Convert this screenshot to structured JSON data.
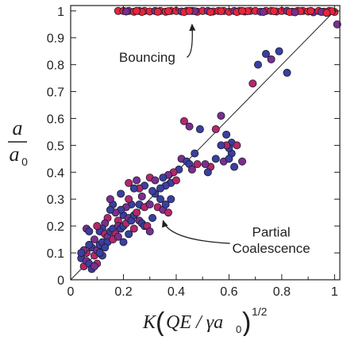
{
  "colors": {
    "axis": "#231f20",
    "point_stroke": "#1a1a2e",
    "bouncing_red": "#e8253a",
    "coalescence_blue": "#3b3f9e",
    "coalescence_purple": "#7a2f8c",
    "coalescence_magenta": "#b5276a"
  },
  "chart_data": {
    "type": "scatter",
    "title": "",
    "xlabel": "K(QE/γa0)^1/2",
    "ylabel": "a / a0",
    "xlim": [
      0,
      1.02
    ],
    "ylim": [
      0,
      1.02
    ],
    "grid": false,
    "legend": "none",
    "x_ticks": [
      "0",
      "0.2",
      "0.4",
      "0.6",
      "0.8",
      "1"
    ],
    "y_ticks": [
      "0",
      "0.1",
      "0.2",
      "0.3",
      "0.4",
      "0.5",
      "0.6",
      "0.7",
      "0.8",
      "0.9",
      "1"
    ],
    "reference_line": {
      "label": "",
      "x": [
        0,
        1
      ],
      "y": [
        0,
        1
      ]
    },
    "annotations": [
      {
        "text": "Bouncing",
        "x": 0.29,
        "y": 0.81,
        "arrow_to": [
          0.46,
          0.95
        ]
      },
      {
        "text": "Partial",
        "x": 0.76,
        "y": 0.16
      },
      {
        "text": "Coalescence",
        "x": 0.76,
        "y": 0.1,
        "arrow_to": [
          0.35,
          0.22
        ]
      }
    ],
    "series": [
      {
        "group": "bouncing",
        "points": [
          [
            0.18,
            1.0
          ],
          [
            0.2,
            1.0
          ],
          [
            0.22,
            1.0
          ],
          [
            0.24,
            0.997
          ],
          [
            0.26,
            1.0
          ],
          [
            0.28,
            1.0
          ],
          [
            0.3,
            0.998
          ],
          [
            0.32,
            1.0
          ],
          [
            0.34,
            1.0
          ],
          [
            0.36,
            0.997
          ],
          [
            0.38,
            1.0
          ],
          [
            0.4,
            1.0
          ],
          [
            0.42,
            0.998
          ],
          [
            0.44,
            1.0
          ],
          [
            0.46,
            1.0
          ],
          [
            0.48,
            0.997
          ],
          [
            0.5,
            1.0
          ],
          [
            0.52,
            1.0
          ],
          [
            0.54,
            0.998
          ],
          [
            0.56,
            1.0
          ],
          [
            0.58,
            1.0
          ],
          [
            0.6,
            0.997
          ],
          [
            0.62,
            1.0
          ],
          [
            0.64,
            1.0
          ],
          [
            0.66,
            0.998
          ],
          [
            0.68,
            1.0
          ],
          [
            0.7,
            1.0
          ],
          [
            0.72,
            0.997
          ],
          [
            0.74,
            1.0
          ],
          [
            0.76,
            1.0
          ],
          [
            0.78,
            0.998
          ],
          [
            0.8,
            1.0
          ],
          [
            0.82,
            1.0
          ],
          [
            0.84,
            0.997
          ],
          [
            0.86,
            1.0
          ],
          [
            0.88,
            1.0
          ],
          [
            0.9,
            0.998
          ],
          [
            0.92,
            0.995
          ],
          [
            0.94,
            1.0
          ],
          [
            0.96,
            0.997
          ],
          [
            0.98,
            1.0
          ],
          [
            1.0,
            0.996
          ],
          [
            0.21,
            0.998
          ],
          [
            0.27,
            0.996
          ],
          [
            0.33,
            0.997
          ],
          [
            0.37,
            0.999
          ],
          [
            0.43,
            0.996
          ],
          [
            0.47,
            0.999
          ],
          [
            0.53,
            0.996
          ],
          [
            0.57,
            0.999
          ],
          [
            0.63,
            0.996
          ],
          [
            0.67,
            0.999
          ],
          [
            0.73,
            0.996
          ],
          [
            0.77,
            0.999
          ],
          [
            0.83,
            0.996
          ],
          [
            0.87,
            0.999
          ],
          [
            0.91,
            1.0
          ],
          [
            0.95,
            0.996
          ],
          [
            0.99,
            0.999
          ],
          [
            0.25,
            1.0
          ],
          [
            0.45,
            1.0
          ],
          [
            0.65,
            1.0
          ],
          [
            0.85,
            0.995
          ],
          [
            0.97,
            0.993
          ]
        ]
      },
      {
        "group": "partial coalescence",
        "points": [
          [
            1.01,
            0.95
          ],
          [
            0.74,
            0.84
          ],
          [
            0.71,
            0.8
          ],
          [
            0.69,
            0.73
          ],
          [
            0.76,
            0.82
          ],
          [
            0.79,
            0.85
          ],
          [
            0.82,
            0.77
          ],
          [
            0.43,
            0.59
          ],
          [
            0.45,
            0.57
          ],
          [
            0.47,
            0.47
          ],
          [
            0.49,
            0.56
          ],
          [
            0.55,
            0.56
          ],
          [
            0.57,
            0.61
          ],
          [
            0.59,
            0.54
          ],
          [
            0.61,
            0.51
          ],
          [
            0.63,
            0.5
          ],
          [
            0.65,
            0.44
          ],
          [
            0.61,
            0.47
          ],
          [
            0.6,
            0.49
          ],
          [
            0.59,
            0.5
          ],
          [
            0.58,
            0.44
          ],
          [
            0.62,
            0.42
          ],
          [
            0.55,
            0.45
          ],
          [
            0.53,
            0.42
          ],
          [
            0.51,
            0.43
          ],
          [
            0.52,
            0.4
          ],
          [
            0.41,
            0.41
          ],
          [
            0.39,
            0.4
          ],
          [
            0.37,
            0.39
          ],
          [
            0.38,
            0.36
          ],
          [
            0.36,
            0.35
          ],
          [
            0.4,
            0.37
          ],
          [
            0.42,
            0.45
          ],
          [
            0.44,
            0.44
          ],
          [
            0.45,
            0.43
          ],
          [
            0.3,
            0.38
          ],
          [
            0.32,
            0.37
          ],
          [
            0.34,
            0.3
          ],
          [
            0.28,
            0.35
          ],
          [
            0.26,
            0.34
          ],
          [
            0.25,
            0.37
          ],
          [
            0.24,
            0.34
          ],
          [
            0.23,
            0.28
          ],
          [
            0.22,
            0.3
          ],
          [
            0.21,
            0.27
          ],
          [
            0.2,
            0.24
          ],
          [
            0.19,
            0.26
          ],
          [
            0.18,
            0.22
          ],
          [
            0.17,
            0.25
          ],
          [
            0.16,
            0.28
          ],
          [
            0.15,
            0.26
          ],
          [
            0.14,
            0.23
          ],
          [
            0.13,
            0.21
          ],
          [
            0.12,
            0.19
          ],
          [
            0.11,
            0.18
          ],
          [
            0.1,
            0.2
          ],
          [
            0.09,
            0.15
          ],
          [
            0.08,
            0.12
          ],
          [
            0.07,
            0.13
          ],
          [
            0.06,
            0.1
          ],
          [
            0.05,
            0.11
          ],
          [
            0.04,
            0.08
          ],
          [
            0.04,
            0.1
          ],
          [
            0.05,
            0.05
          ],
          [
            0.06,
            0.07
          ],
          [
            0.07,
            0.06
          ],
          [
            0.08,
            0.04
          ],
          [
            0.09,
            0.09
          ],
          [
            0.1,
            0.11
          ],
          [
            0.11,
            0.13
          ],
          [
            0.12,
            0.14
          ],
          [
            0.13,
            0.17
          ],
          [
            0.14,
            0.16
          ],
          [
            0.15,
            0.18
          ],
          [
            0.16,
            0.19
          ],
          [
            0.17,
            0.17
          ],
          [
            0.18,
            0.2
          ],
          [
            0.19,
            0.19
          ],
          [
            0.2,
            0.2
          ],
          [
            0.21,
            0.21
          ],
          [
            0.22,
            0.23
          ],
          [
            0.23,
            0.22
          ],
          [
            0.24,
            0.24
          ],
          [
            0.25,
            0.25
          ],
          [
            0.26,
            0.22
          ],
          [
            0.27,
            0.21
          ],
          [
            0.28,
            0.2
          ],
          [
            0.29,
            0.2
          ],
          [
            0.3,
            0.18
          ],
          [
            0.31,
            0.23
          ],
          [
            0.26,
            0.28
          ],
          [
            0.28,
            0.27
          ],
          [
            0.3,
            0.28
          ],
          [
            0.32,
            0.32
          ],
          [
            0.34,
            0.34
          ],
          [
            0.33,
            0.27
          ],
          [
            0.35,
            0.26
          ],
          [
            0.36,
            0.28
          ],
          [
            0.38,
            0.3
          ],
          [
            0.37,
            0.25
          ],
          [
            0.15,
            0.3
          ],
          [
            0.14,
            0.14
          ],
          [
            0.12,
            0.09
          ],
          [
            0.1,
            0.06
          ],
          [
            0.09,
            0.05
          ],
          [
            0.11,
            0.1
          ],
          [
            0.13,
            0.12
          ],
          [
            0.16,
            0.15
          ],
          [
            0.18,
            0.16
          ],
          [
            0.2,
            0.14
          ],
          [
            0.22,
            0.17
          ],
          [
            0.24,
            0.19
          ],
          [
            0.06,
            0.19
          ],
          [
            0.07,
            0.18
          ],
          [
            0.19,
            0.32
          ],
          [
            0.22,
            0.36
          ],
          [
            0.27,
            0.31
          ],
          [
            0.31,
            0.33
          ],
          [
            0.35,
            0.38
          ],
          [
            0.48,
            0.43
          ],
          [
            0.46,
            0.41
          ],
          [
            0.57,
            0.5
          ],
          [
            0.6,
            0.45
          ]
        ]
      }
    ]
  }
}
